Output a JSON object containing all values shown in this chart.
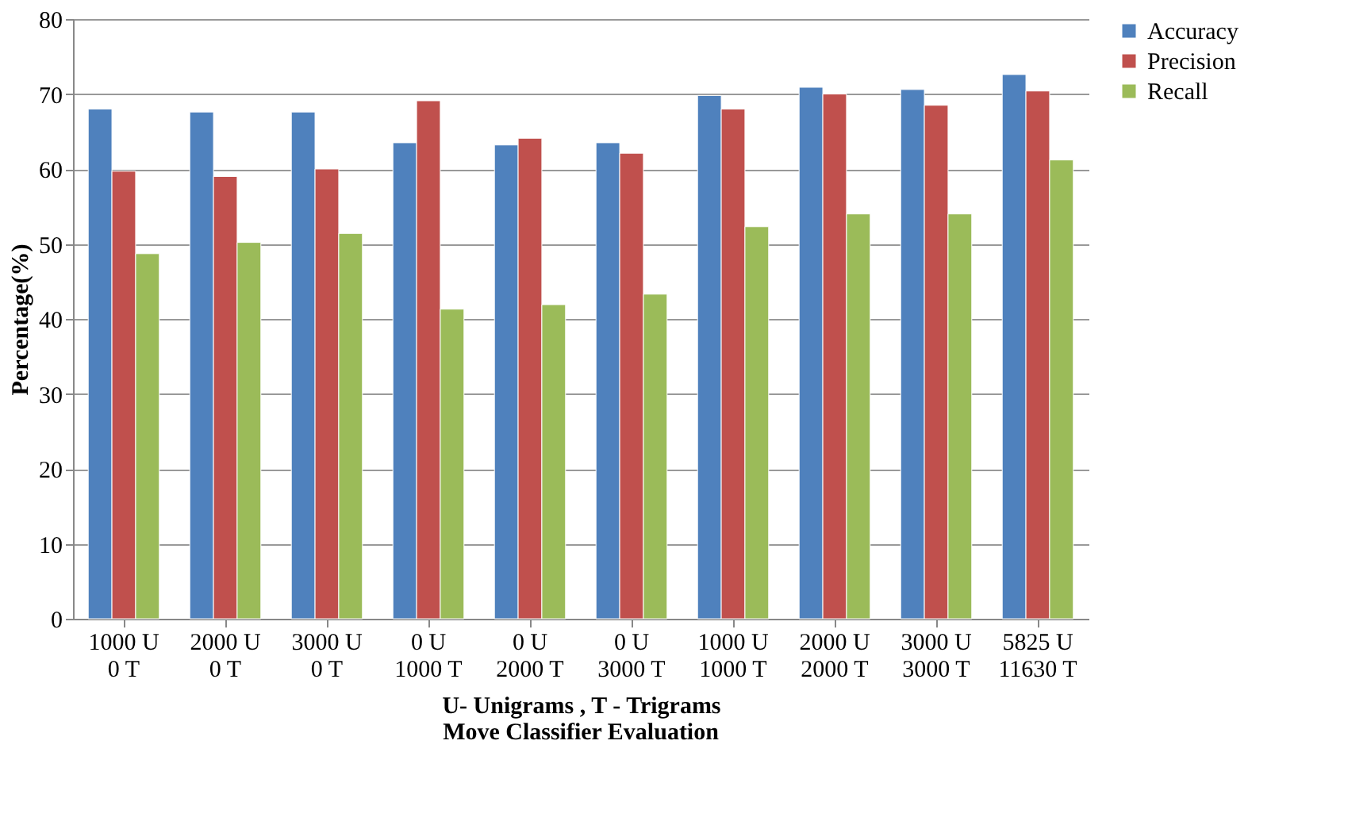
{
  "chart_data": {
    "type": "bar",
    "title": "Move  Classifier Evaluation",
    "xlabel": "U- Unigrams  , T - Trigrams",
    "ylabel": "Percentage(%)",
    "categories": [
      "1000 U\n0 T",
      "2000 U\n0 T",
      "3000 U\n0 T",
      "0 U\n1000 T",
      "0 U\n2000 T",
      "0 U\n3000 T",
      "1000 U\n1000 T",
      "2000 U\n2000 T",
      "3000 U\n3000 T",
      "5825 U\n11630 T"
    ],
    "series": [
      {
        "name": "Accuracy",
        "color": "#4f81bd",
        "values": [
          68.0,
          67.6,
          67.6,
          63.5,
          63.2,
          63.5,
          69.8,
          70.9,
          70.6,
          72.6
        ]
      },
      {
        "name": "Precision",
        "color": "#c0504d",
        "values": [
          59.7,
          59.0,
          60.0,
          69.1,
          64.1,
          62.1,
          68.0,
          70.0,
          68.5,
          70.4
        ]
      },
      {
        "name": "Recall",
        "color": "#9bbb59",
        "values": [
          48.7,
          50.2,
          51.4,
          41.3,
          41.9,
          43.3,
          52.3,
          54.0,
          54.0,
          61.2
        ]
      }
    ],
    "ylim": [
      0,
      80
    ],
    "yticks": [
      0,
      10,
      20,
      30,
      40,
      50,
      60,
      70,
      80
    ],
    "grid": "y",
    "legend": "right"
  }
}
